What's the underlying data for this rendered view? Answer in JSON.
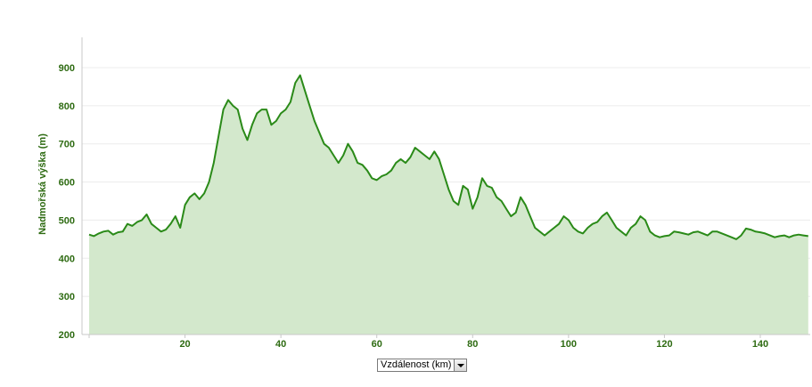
{
  "chart_data": {
    "type": "area",
    "title": "",
    "ylabel": "Nadmořská výška (m)",
    "xlabel": "Vzdálenost (km)",
    "xlim": [
      0,
      150
    ],
    "ylim": [
      200,
      900
    ],
    "x_ticks": [
      20,
      40,
      60,
      80,
      100,
      120,
      140
    ],
    "y_ticks": [
      200,
      300,
      400,
      500,
      600,
      700,
      800,
      900
    ],
    "grid": "horizontal",
    "legend": "none",
    "colors": {
      "line": "#2a8a18",
      "fill": "#d3e8cc",
      "tick_text": "#2e6b12",
      "grid": "#ececec",
      "axis": "#c8c8c8"
    },
    "series": [
      {
        "x": [
          0,
          1,
          2,
          3,
          4,
          5,
          6,
          7,
          8,
          9,
          10,
          11,
          12,
          13,
          14,
          15,
          16,
          17,
          18,
          19,
          20,
          21,
          22,
          23,
          24,
          25,
          26,
          27,
          28,
          29,
          30,
          31,
          32,
          33,
          34,
          35,
          36,
          37,
          38,
          39,
          40,
          41,
          42,
          43,
          44,
          45,
          46,
          47,
          48,
          49,
          50,
          51,
          52,
          53,
          54,
          55,
          56,
          57,
          58,
          59,
          60,
          61,
          62,
          63,
          64,
          65,
          66,
          67,
          68,
          69,
          70,
          71,
          72,
          73,
          74,
          75,
          76,
          77,
          78,
          79,
          80,
          81,
          82,
          83,
          84,
          85,
          86,
          87,
          88,
          89,
          90,
          91,
          92,
          93,
          94,
          95,
          96,
          97,
          98,
          99,
          100,
          101,
          102,
          103,
          104,
          105,
          106,
          107,
          108,
          109,
          110,
          111,
          112,
          113,
          114,
          115,
          116,
          117,
          118,
          119,
          120,
          121,
          122,
          123,
          124,
          125,
          126,
          127,
          128,
          129,
          130,
          131,
          132,
          133,
          134,
          135,
          136,
          137,
          138,
          139,
          140,
          141,
          142,
          143,
          144,
          145,
          146,
          147,
          148,
          149,
          150
        ],
        "values": [
          462,
          458,
          465,
          470,
          472,
          462,
          468,
          470,
          490,
          485,
          495,
          500,
          515,
          490,
          480,
          470,
          475,
          490,
          510,
          480,
          540,
          560,
          570,
          555,
          570,
          600,
          650,
          720,
          790,
          815,
          800,
          790,
          740,
          710,
          750,
          780,
          790,
          790,
          750,
          760,
          780,
          790,
          810,
          860,
          880,
          840,
          800,
          760,
          730,
          700,
          690,
          670,
          650,
          670,
          700,
          680,
          650,
          645,
          630,
          610,
          605,
          615,
          620,
          630,
          650,
          660,
          650,
          665,
          690,
          680,
          670,
          660,
          680,
          660,
          620,
          580,
          550,
          540,
          590,
          580,
          530,
          560,
          610,
          590,
          585,
          560,
          550,
          530,
          510,
          520,
          560,
          540,
          510,
          480,
          470,
          460,
          470,
          480,
          490,
          510,
          500,
          480,
          470,
          465,
          480,
          490,
          495,
          510,
          520,
          500,
          480,
          470,
          460,
          480,
          490,
          510,
          500,
          470,
          460,
          455,
          458,
          460,
          470,
          468,
          465,
          462,
          468,
          470,
          465,
          460,
          470,
          470,
          465,
          460,
          455,
          450,
          460,
          478,
          475,
          470,
          468,
          465,
          460,
          455,
          458,
          460,
          455,
          460,
          462,
          460,
          458
        ]
      }
    ]
  }
}
